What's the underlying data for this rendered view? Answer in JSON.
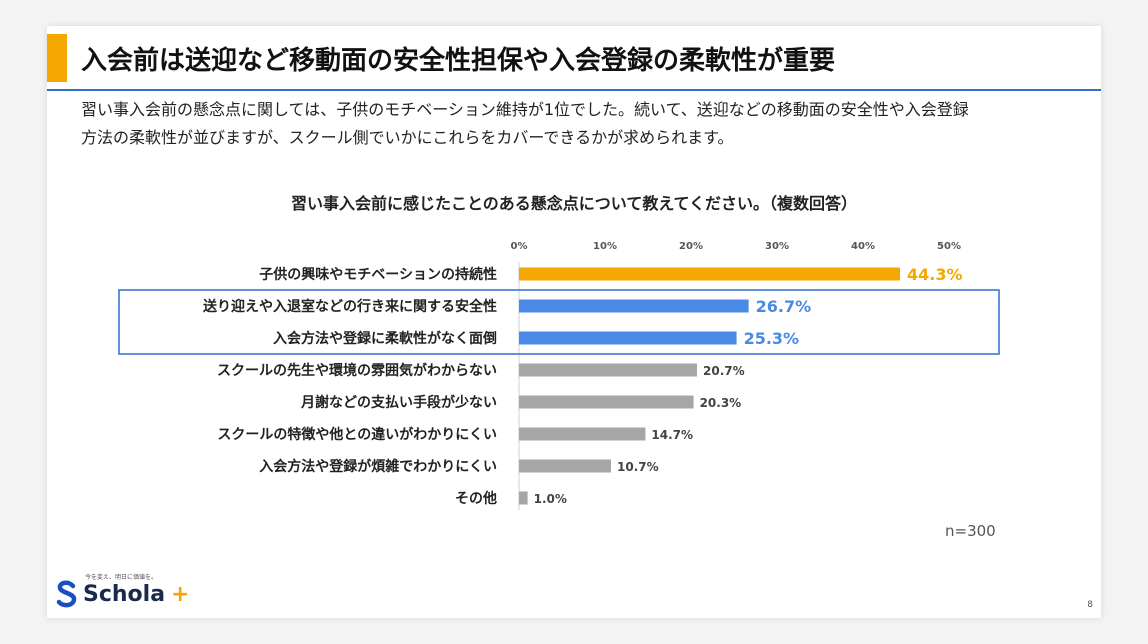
{
  "title": "入会前は送迎など移動面の安全性担保や入会登録の柔軟性が重要",
  "description_line1": "習い事入会前の懸念点に関しては、子供のモチベーション維持が1位でした。続いて、送迎などの移動面の安全性や入会登録",
  "description_line2": "方法の柔軟性が並びますが、スクール側でいかにこれらをカバーできるかが求められます。",
  "n_label": "n=300",
  "logo": {
    "tagline": "今を変え、明日に価値を。",
    "text": "Schola",
    "plus": "+"
  },
  "page_number": "8",
  "colors": {
    "accent": "#f4a700",
    "rule": "#2f6fd0",
    "highlight_bar": "#4a8ae6",
    "top_bar": "#f4a700",
    "grey_bar": "#a6a6a6",
    "highlight_box": "#2f6fd0"
  },
  "chart_data": {
    "type": "bar",
    "orientation": "horizontal",
    "title": "習い事入会前に感じたことのある懸念点について教えてください。（複数回答）",
    "tick_labels": [
      "0%",
      "10%",
      "20%",
      "30%",
      "40%",
      "50%"
    ],
    "xlim": [
      0,
      50
    ],
    "categories": [
      "子供の興味やモチベーションの持続性",
      "送り迎えや入退室などの行き来に関する安全性",
      "入会方法や登録に柔軟性がなく面倒",
      "スクールの先生や環境の雰囲気がわからない",
      "月謝などの支払い手段が少ない",
      "スクールの特徴や他との違いがわかりにくい",
      "入会方法や登録が煩雑でわかりにくい",
      "その他"
    ],
    "values": [
      44.3,
      26.7,
      25.3,
      20.7,
      20.3,
      14.7,
      10.7,
      1.0
    ],
    "value_labels": [
      "44.3%",
      "26.7%",
      "25.3%",
      "20.7%",
      "20.3%",
      "14.7%",
      "10.7%",
      "1.0%"
    ],
    "bar_style": [
      "top",
      "highlight",
      "highlight",
      "grey",
      "grey",
      "grey",
      "grey",
      "grey"
    ],
    "highlighted_group": [
      1,
      2
    ]
  }
}
